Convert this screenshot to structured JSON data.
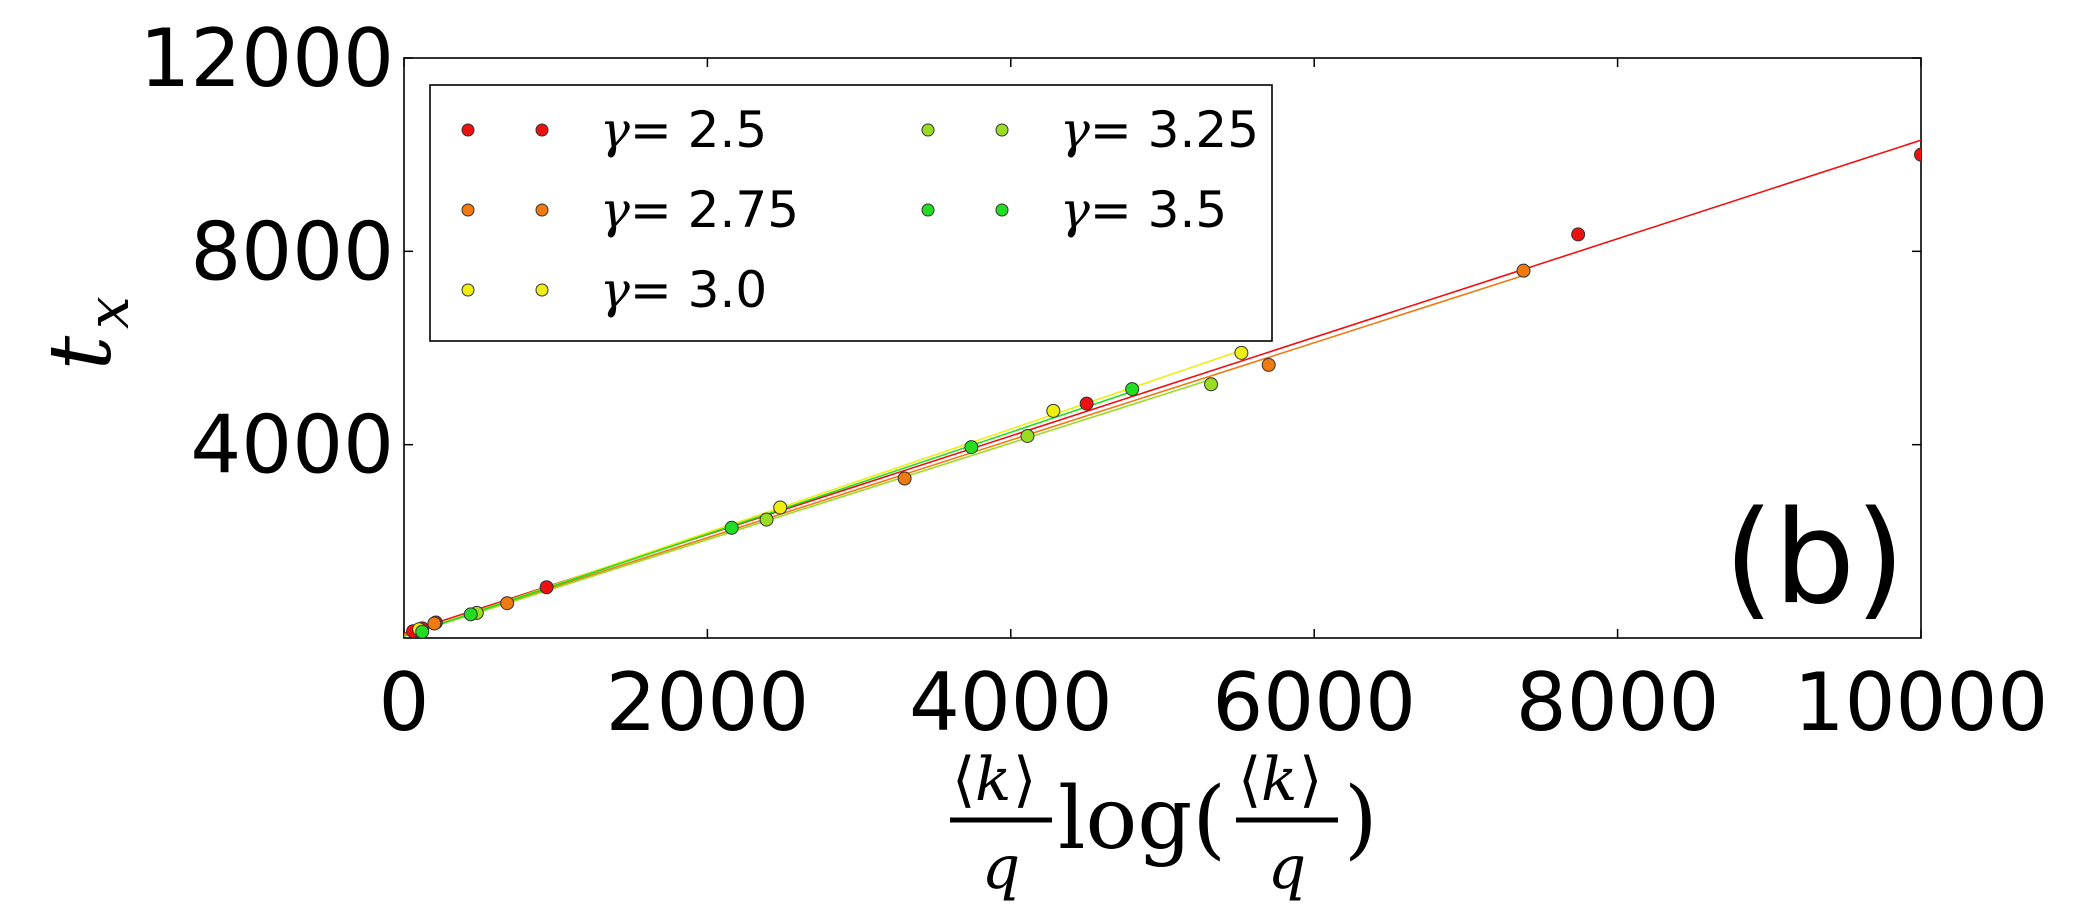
{
  "chart_data": {
    "type": "scatter",
    "panel_label": "(b)",
    "xlim": [
      0,
      10000
    ],
    "ylim": [
      0,
      12000
    ],
    "xticks": [
      0,
      2000,
      4000,
      6000,
      8000,
      10000
    ],
    "yticks": [
      4000,
      8000,
      12000
    ],
    "grid": false,
    "legend_position": "top-left",
    "legend_columns": 2,
    "series": [
      {
        "name": "γ = 2.5",
        "symbol": "γ",
        "value_label": "= 2.5",
        "color": "#ee1111",
        "points": [
          [
            60,
            140
          ],
          [
            120,
            200
          ],
          [
            210,
            320
          ],
          [
            940,
            1050
          ],
          [
            4500,
            4850
          ],
          [
            7740,
            8350
          ],
          [
            10000,
            10000
          ]
        ],
        "fit": [
          [
            0,
            100
          ],
          [
            10000,
            10300
          ]
        ]
      },
      {
        "name": "γ = 2.75",
        "symbol": "γ",
        "value_label": "= 2.75",
        "color": "#f07a10",
        "points": [
          [
            200,
            300
          ],
          [
            680,
            720
          ],
          [
            3300,
            3300
          ],
          [
            5700,
            5650
          ],
          [
            7380,
            7600
          ]
        ],
        "fit": [
          [
            0,
            60
          ],
          [
            7380,
            7500
          ]
        ]
      },
      {
        "name": "γ = 3.0",
        "symbol": "γ",
        "value_label": "= 3.0",
        "color": "#eeee11",
        "points": [
          [
            100,
            180
          ],
          [
            2480,
            2700
          ],
          [
            4280,
            4700
          ],
          [
            5520,
            5900
          ]
        ],
        "fit": [
          [
            0,
            40
          ],
          [
            5520,
            5950
          ]
        ]
      },
      {
        "name": "γ = 3.25",
        "symbol": "γ",
        "value_label": "= 3.25",
        "color": "#99dd22",
        "points": [
          [
            480,
            520
          ],
          [
            2390,
            2450
          ],
          [
            4110,
            4180
          ],
          [
            5320,
            5250
          ]
        ],
        "fit": [
          [
            0,
            40
          ],
          [
            5320,
            5350
          ]
        ]
      },
      {
        "name": "γ = 3.5",
        "symbol": "γ",
        "value_label": "= 3.5",
        "color": "#22dd22",
        "points": [
          [
            120,
            130
          ],
          [
            440,
            490
          ],
          [
            2160,
            2280
          ],
          [
            3740,
            3950
          ],
          [
            4800,
            5150
          ]
        ],
        "fit": [
          [
            0,
            40
          ],
          [
            4800,
            5100
          ]
        ]
      }
    ]
  }
}
